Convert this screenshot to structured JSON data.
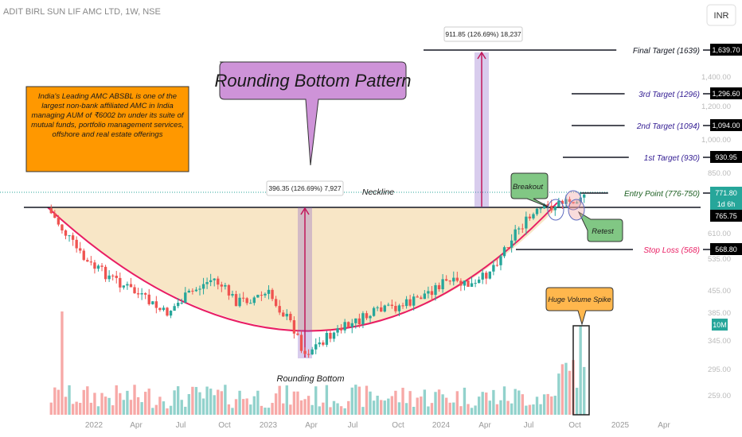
{
  "header": {
    "symbol": "ADIT BIRL SUN LIF AMC LTD, 1W, NSE",
    "currency": "INR"
  },
  "chart_data": {
    "type": "candlestick",
    "title": "Rounding Bottom Pattern",
    "price_axis_ticks": [
      "1,400.00",
      "1,200.00",
      "1,000.00",
      "850.00",
      "610.00",
      "535.00",
      "455.00",
      "385.00",
      "345.00",
      "295.00",
      "259.00"
    ],
    "time_axis_labels": [
      "2022",
      "Apr",
      "Jul",
      "Oct",
      "2023",
      "Apr",
      "Jul",
      "Oct",
      "2024",
      "Apr",
      "Jul",
      "Oct",
      "2025",
      "Apr"
    ],
    "price_labels": [
      {
        "name": "final-target",
        "value": "1,639.70",
        "color": "#000000"
      },
      {
        "name": "third-target",
        "value": "1,296.60",
        "color": "#000000"
      },
      {
        "name": "second-target",
        "value": "1,094.00",
        "color": "#000000"
      },
      {
        "name": "first-target",
        "value": "930.95",
        "color": "#000000"
      },
      {
        "name": "last-price",
        "value": "771.80",
        "color": "#26a69a"
      },
      {
        "name": "countdown",
        "value": "1d 6h",
        "color": "#26a69a"
      },
      {
        "name": "neckline-price",
        "value": "765.75",
        "color": "#000000"
      },
      {
        "name": "stop-loss",
        "value": "568.80",
        "color": "#000000"
      },
      {
        "name": "volume",
        "value": "10M",
        "color": "#26a69a"
      }
    ],
    "levels": [
      {
        "label": "Final Target (1639)",
        "price": 1639.7,
        "color": "#131722"
      },
      {
        "label": "3rd Target (1296)",
        "price": 1296.6,
        "color": "#311b92"
      },
      {
        "label": "2nd Target (1094)",
        "price": 1094.0,
        "color": "#311b92"
      },
      {
        "label": "1st Target (930)",
        "price": 930.95,
        "color": "#311b92"
      },
      {
        "label": "Entry Point (776-750)",
        "price": 771.8,
        "color": "#1b5e20"
      },
      {
        "label": "Stop Loss (568)",
        "price": 568.8,
        "color": "#e91e63"
      }
    ],
    "annotations": {
      "neckline": "Neckline",
      "rounding_bottom": "Rounding Bottom",
      "breakout": "Breakout",
      "retest": "Retest",
      "volume_spike": "Huge Volume Spike",
      "measure_1": "396.35 (126.69%) 7,927",
      "measure_2": "911.85 (126.69%) 18,237",
      "description": "India's Leading AMC ABSBL is one of the largest non-bank affiliated AMC in India managing AUM of ₹6002 bn under its suite of mutual funds, portfolio management services, offshore and real estate offerings"
    },
    "ohlc_approx": {
      "start_price": 760,
      "bottom_price": 310,
      "bottom_date": "Mar 2023",
      "end_price": 771.8
    },
    "colors": {
      "up": "#26a69a",
      "down": "#ef5350",
      "bowl_fill": "#f5deb3",
      "bowl_line": "#e91e63",
      "title_bg": "#ce93d8",
      "note_bg": "#ff9800",
      "green_note": "#81c784"
    }
  }
}
